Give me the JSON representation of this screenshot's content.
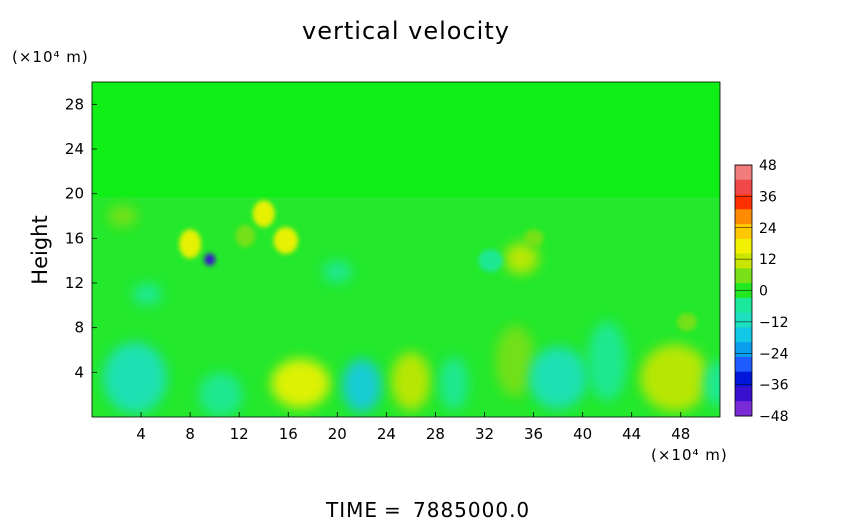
{
  "chart_data": {
    "type": "heatmap",
    "title": "vertical velocity",
    "ylabel": "Height",
    "y_unit_label": "(×10⁴ m)",
    "x_unit_label": "(×10⁴ m)",
    "xlim": [
      0,
      51.2
    ],
    "ylim": [
      0,
      30
    ],
    "x_ticks": [
      4,
      8,
      12,
      16,
      20,
      24,
      28,
      32,
      36,
      40,
      44,
      48
    ],
    "y_ticks": [
      4,
      8,
      12,
      16,
      20,
      24,
      28
    ],
    "colorbar": {
      "ticks": [
        48,
        36,
        24,
        12,
        0,
        -12,
        -24,
        -36,
        -48
      ],
      "range": [
        -48,
        48
      ]
    },
    "features": [
      {
        "x": 17.0,
        "y": 3.0,
        "value": 20,
        "rx": 2.4,
        "ry": 2.2
      },
      {
        "x": 22.0,
        "y": 2.8,
        "value": -16,
        "rx": 1.6,
        "ry": 2.4
      },
      {
        "x": 3.5,
        "y": 3.5,
        "value": -13,
        "rx": 2.6,
        "ry": 3.2
      },
      {
        "x": 10.5,
        "y": 2.0,
        "value": -6,
        "rx": 1.8,
        "ry": 2.0
      },
      {
        "x": 26.0,
        "y": 3.2,
        "value": 12,
        "rx": 1.6,
        "ry": 2.6
      },
      {
        "x": 29.5,
        "y": 3.0,
        "value": -6,
        "rx": 1.2,
        "ry": 2.4
      },
      {
        "x": 34.5,
        "y": 5.0,
        "value": 9,
        "rx": 1.6,
        "ry": 3.2
      },
      {
        "x": 38.0,
        "y": 3.5,
        "value": -9,
        "rx": 2.4,
        "ry": 2.8
      },
      {
        "x": 42.0,
        "y": 5.0,
        "value": -7,
        "rx": 1.6,
        "ry": 3.6
      },
      {
        "x": 47.5,
        "y": 3.5,
        "value": 11,
        "rx": 2.8,
        "ry": 3.0
      },
      {
        "x": 51.0,
        "y": 3.0,
        "value": -5,
        "rx": 1.2,
        "ry": 2.0
      },
      {
        "x": 9.6,
        "y": 14.1,
        "value": -40,
        "rx": 0.45,
        "ry": 0.55
      },
      {
        "x": 8.0,
        "y": 15.5,
        "value": 18,
        "rx": 0.9,
        "ry": 1.3
      },
      {
        "x": 14.0,
        "y": 18.2,
        "value": 16,
        "rx": 0.9,
        "ry": 1.2
      },
      {
        "x": 15.8,
        "y": 15.8,
        "value": 20,
        "rx": 1.0,
        "ry": 1.2
      },
      {
        "x": 12.5,
        "y": 16.2,
        "value": 8,
        "rx": 0.8,
        "ry": 1.0
      },
      {
        "x": 35.0,
        "y": 14.2,
        "value": 12,
        "rx": 1.4,
        "ry": 1.4
      },
      {
        "x": 36.0,
        "y": 16.0,
        "value": 9,
        "rx": 0.8,
        "ry": 0.8
      },
      {
        "x": 32.5,
        "y": 14.0,
        "value": -6,
        "rx": 1.0,
        "ry": 1.0
      },
      {
        "x": 20.0,
        "y": 13.0,
        "value": -6,
        "rx": 1.2,
        "ry": 1.0
      },
      {
        "x": 2.5,
        "y": 18.0,
        "value": 5,
        "rx": 1.2,
        "ry": 1.0
      },
      {
        "x": 48.5,
        "y": 8.5,
        "value": 6,
        "rx": 0.8,
        "ry": 0.8
      },
      {
        "x": 4.5,
        "y": 11.0,
        "value": -4,
        "rx": 1.2,
        "ry": 1.0
      }
    ]
  },
  "footer": {
    "time_label": "TIME",
    "equals": "=",
    "time_value": "7885000.0"
  }
}
